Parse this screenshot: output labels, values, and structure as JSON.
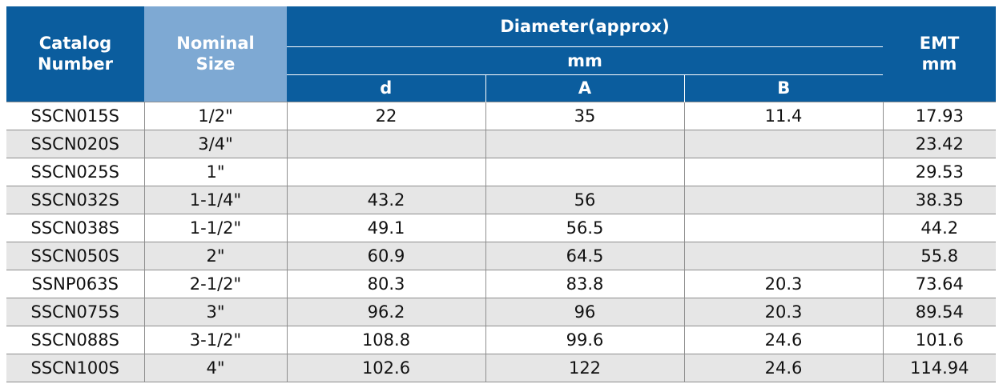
{
  "header": {
    "catalog_number": "Catalog Number",
    "nominal_size": "Nominal Size",
    "diameter": "Diameter(approx)",
    "diameter_unit": "mm",
    "col_d": "d",
    "col_a": "A",
    "col_b": "B",
    "emt": "EMT mm"
  },
  "rows": [
    {
      "catalog": "SSCN015S",
      "size": "1/2\"",
      "d": "22",
      "a": "35",
      "b": "11.4",
      "emt": "17.93"
    },
    {
      "catalog": "SSCN020S",
      "size": "3/4\"",
      "d": "",
      "a": "",
      "b": "",
      "emt": "23.42"
    },
    {
      "catalog": "SSCN025S",
      "size": "1\"",
      "d": "",
      "a": "",
      "b": "",
      "emt": "29.53"
    },
    {
      "catalog": "SSCN032S",
      "size": "1-1/4\"",
      "d": "43.2",
      "a": "56",
      "b": "",
      "emt": "38.35"
    },
    {
      "catalog": "SSCN038S",
      "size": "1-1/2\"",
      "d": "49.1",
      "a": "56.5",
      "b": "",
      "emt": "44.2"
    },
    {
      "catalog": "SSCN050S",
      "size": "2\"",
      "d": "60.9",
      "a": "64.5",
      "b": "",
      "emt": "55.8"
    },
    {
      "catalog": "SSNP063S",
      "size": "2-1/2\"",
      "d": "80.3",
      "a": "83.8",
      "b": "20.3",
      "emt": "73.64"
    },
    {
      "catalog": "SSCN075S",
      "size": "3\"",
      "d": "96.2",
      "a": "96",
      "b": "20.3",
      "emt": "89.54"
    },
    {
      "catalog": "SSCN088S",
      "size": "3-1/2\"",
      "d": "108.8",
      "a": "99.6",
      "b": "24.6",
      "emt": "101.6"
    },
    {
      "catalog": "SSCN100S",
      "size": "4\"",
      "d": "102.6",
      "a": "122",
      "b": "24.6",
      "emt": "114.94"
    }
  ]
}
